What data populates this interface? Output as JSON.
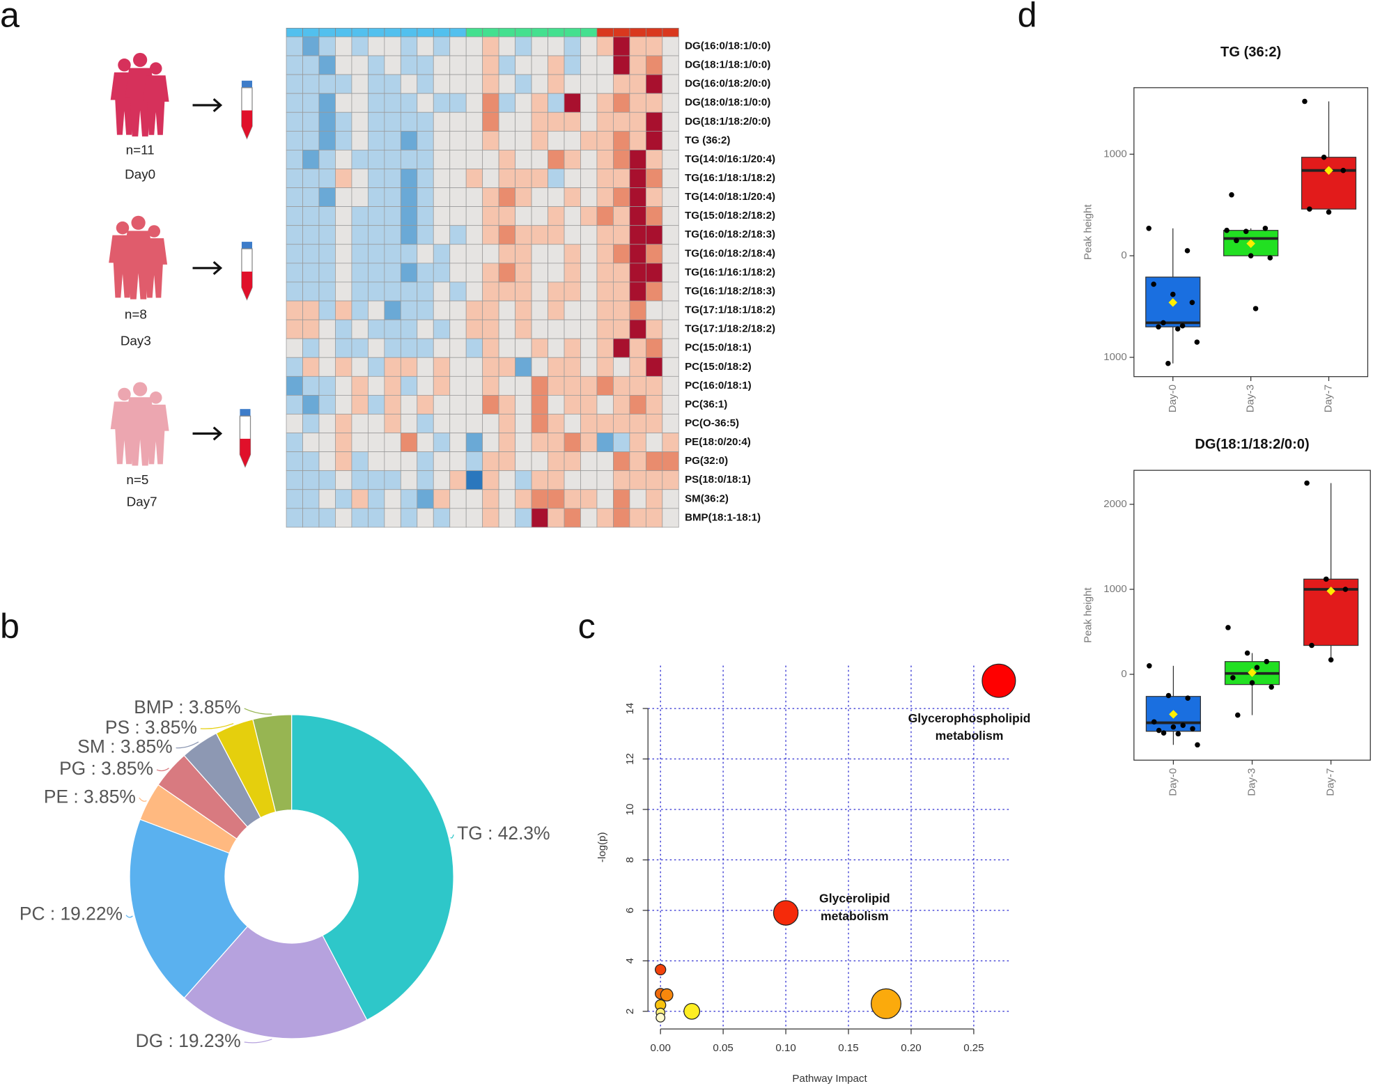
{
  "panel_labels": [
    "a",
    "b",
    "c",
    "d"
  ],
  "schematic": {
    "groups": [
      {
        "n": "n=11",
        "day": "Day0"
      },
      {
        "n": "n=8",
        "day": "Day3"
      },
      {
        "n": "n=5",
        "day": "Day7"
      }
    ]
  },
  "chart_data": [
    {
      "type": "heatmap",
      "rows": [
        "DG(16:0/18:1/0:0)",
        "DG(18:1/18:1/0:0)",
        "DG(16:0/18:2/0:0)",
        "DG(18:0/18:1/0:0)",
        "DG(18:1/18:2/0:0)",
        "TG (36:2)",
        "TG(14:0/16:1/20:4)",
        "TG(16:1/18:1/18:2)",
        "TG(14:0/18:1/20:4)",
        "TG(15:0/18:2/18:2)",
        "TG(16:0/18:2/18:3)",
        "TG(16:0/18:2/18:4)",
        "TG(16:1/16:1/18:2)",
        "TG(16:1/18:2/18:3)",
        "TG(17:1/18:1/18:2)",
        "TG(17:1/18:2/18:2)",
        "PC(15:0/18:1)",
        "PC(15:0/18:2)",
        "PC(16:0/18:1)",
        "PC(36:1)",
        "PC(O-36:5)",
        "PE(18:0/20:4)",
        "PG(32:0)",
        "PS(18:0/18:1)",
        "SM(36:2)",
        "BMP(18:1-18:1)"
      ],
      "column_groups": [
        {
          "color": "#52c0ee",
          "count": 11
        },
        {
          "color": "#44e08f",
          "count": 8
        },
        {
          "color": "#d9381e",
          "count": 5
        }
      ],
      "zlim": [
        -3,
        3
      ],
      "colors": [
        "#2b77bd",
        "#6aa9d6",
        "#b0d2ea",
        "#e6e4e2",
        "#f6c4ad",
        "#e98c6e",
        "#a8102e"
      ],
      "values": [
        [
          -1,
          -2,
          -1,
          0,
          -1,
          0,
          0,
          -1,
          0,
          -1,
          0,
          0,
          1,
          0,
          -1,
          0,
          0,
          -1,
          0,
          1,
          3,
          1,
          1,
          0
        ],
        [
          -1,
          -1,
          -2,
          0,
          0,
          -1,
          0,
          -1,
          -1,
          0,
          0,
          0,
          1,
          -1,
          0,
          0,
          1,
          -1,
          0,
          0,
          3,
          1,
          2,
          0
        ],
        [
          -1,
          -1,
          -1,
          -1,
          0,
          -1,
          -1,
          0,
          -1,
          0,
          0,
          0,
          1,
          0,
          -1,
          0,
          1,
          0,
          0,
          0,
          1,
          1,
          3,
          0
        ],
        [
          -1,
          -1,
          -2,
          0,
          0,
          -1,
          -1,
          -1,
          0,
          -1,
          -1,
          0,
          2,
          -1,
          0,
          1,
          -1,
          3,
          0,
          1,
          2,
          1,
          1,
          0
        ],
        [
          -1,
          -1,
          -2,
          -1,
          0,
          -1,
          -1,
          -1,
          -1,
          0,
          0,
          0,
          2,
          0,
          0,
          1,
          1,
          1,
          0,
          1,
          1,
          1,
          3,
          0
        ],
        [
          -1,
          -1,
          -2,
          -1,
          0,
          -1,
          -1,
          -2,
          -1,
          0,
          0,
          0,
          1,
          0,
          0,
          1,
          0,
          0,
          1,
          1,
          2,
          1,
          3,
          0
        ],
        [
          -1,
          -2,
          -1,
          0,
          -1,
          -1,
          -1,
          -1,
          -1,
          0,
          0,
          0,
          0,
          1,
          0,
          0,
          2,
          1,
          0,
          1,
          2,
          3,
          1,
          0
        ],
        [
          -1,
          -1,
          -1,
          1,
          0,
          -1,
          -1,
          -2,
          -1,
          0,
          0,
          1,
          0,
          1,
          1,
          1,
          -1,
          0,
          0,
          1,
          1,
          3,
          2,
          0
        ],
        [
          -1,
          -1,
          -2,
          0,
          0,
          -1,
          -1,
          -2,
          -1,
          0,
          0,
          0,
          1,
          2,
          1,
          0,
          0,
          1,
          0,
          1,
          2,
          3,
          1,
          0
        ],
        [
          -1,
          -1,
          -1,
          0,
          -1,
          -1,
          -1,
          -2,
          -1,
          0,
          0,
          0,
          1,
          1,
          0,
          0,
          1,
          0,
          1,
          2,
          1,
          3,
          2,
          0
        ],
        [
          -1,
          -1,
          -1,
          0,
          -1,
          -1,
          -1,
          -2,
          -1,
          0,
          -1,
          0,
          1,
          2,
          1,
          1,
          1,
          0,
          0,
          1,
          1,
          3,
          3,
          0
        ],
        [
          -1,
          -1,
          -1,
          0,
          -1,
          -1,
          -1,
          -1,
          0,
          -1,
          0,
          0,
          0,
          1,
          1,
          0,
          0,
          1,
          0,
          1,
          2,
          3,
          2,
          0
        ],
        [
          -1,
          -1,
          -1,
          0,
          -1,
          -1,
          -1,
          -2,
          -1,
          -1,
          0,
          0,
          1,
          2,
          1,
          0,
          0,
          1,
          0,
          1,
          1,
          3,
          3,
          0
        ],
        [
          -1,
          -1,
          -1,
          0,
          -1,
          -1,
          -1,
          -1,
          -1,
          0,
          -1,
          0,
          1,
          1,
          1,
          0,
          1,
          1,
          0,
          1,
          1,
          3,
          2,
          0
        ],
        [
          1,
          1,
          -1,
          1,
          -1,
          0,
          -2,
          -1,
          -1,
          0,
          0,
          1,
          1,
          0,
          1,
          0,
          1,
          0,
          0,
          1,
          1,
          2,
          0,
          0
        ],
        [
          1,
          1,
          0,
          -1,
          0,
          -1,
          -1,
          -1,
          0,
          -1,
          0,
          1,
          1,
          0,
          1,
          0,
          0,
          0,
          0,
          1,
          1,
          3,
          1,
          0
        ],
        [
          0,
          -1,
          0,
          -1,
          -1,
          0,
          -1,
          -1,
          -1,
          0,
          0,
          -1,
          1,
          0,
          0,
          1,
          0,
          1,
          0,
          1,
          3,
          1,
          2,
          0
        ],
        [
          -1,
          1,
          0,
          1,
          0,
          -1,
          1,
          1,
          0,
          1,
          0,
          0,
          1,
          1,
          -2,
          0,
          1,
          1,
          0,
          1,
          0,
          1,
          3,
          0
        ],
        [
          -2,
          -1,
          -1,
          0,
          1,
          0,
          1,
          -1,
          0,
          1,
          0,
          0,
          1,
          0,
          0,
          2,
          1,
          1,
          1,
          2,
          1,
          1,
          1,
          0
        ],
        [
          -1,
          -2,
          -1,
          0,
          1,
          -1,
          1,
          0,
          1,
          0,
          0,
          0,
          2,
          1,
          0,
          2,
          0,
          1,
          1,
          0,
          1,
          2,
          1,
          0
        ],
        [
          0,
          -1,
          0,
          1,
          0,
          0,
          1,
          0,
          -1,
          0,
          0,
          0,
          0,
          1,
          0,
          2,
          1,
          0,
          1,
          1,
          1,
          1,
          1,
          0
        ],
        [
          -1,
          0,
          0,
          1,
          0,
          0,
          0,
          2,
          0,
          -1,
          0,
          -2,
          0,
          1,
          0,
          1,
          1,
          2,
          1,
          -2,
          -1,
          1,
          0,
          1
        ],
        [
          -1,
          -1,
          0,
          1,
          -1,
          0,
          0,
          0,
          -1,
          0,
          0,
          -1,
          1,
          1,
          0,
          0,
          1,
          1,
          0,
          0,
          2,
          1,
          2,
          2
        ],
        [
          -1,
          -1,
          -1,
          0,
          -1,
          -1,
          -1,
          0,
          -1,
          0,
          1,
          -3,
          1,
          0,
          -1,
          1,
          1,
          0,
          0,
          0,
          1,
          1,
          1,
          1
        ],
        [
          -1,
          -1,
          0,
          -1,
          1,
          -1,
          0,
          -1,
          -2,
          1,
          0,
          0,
          1,
          0,
          1,
          2,
          2,
          1,
          1,
          0,
          2,
          0,
          1,
          0
        ],
        [
          -1,
          -1,
          -1,
          0,
          -1,
          -1,
          0,
          -1,
          0,
          -1,
          0,
          0,
          1,
          0,
          -1,
          3,
          1,
          2,
          0,
          1,
          2,
          1,
          1,
          0
        ]
      ]
    },
    {
      "type": "pie",
      "donut": true,
      "values": [
        42.3,
        19.23,
        19.22,
        3.85,
        3.85,
        3.85,
        3.85,
        3.85
      ],
      "value_labels": [
        "TG : 42.3%",
        "DG : 19.23%",
        "PC : 19.22%",
        "PE : 3.85%",
        "PG : 3.85%",
        "SM : 3.85%",
        "PS : 3.85%",
        "BMP : 3.85%"
      ],
      "colors": [
        "#2ec7c9",
        "#b6a2de",
        "#5ab1ef",
        "#ffb980",
        "#d87a80",
        "#8d98b3",
        "#e5cf0d",
        "#97b552"
      ]
    },
    {
      "type": "scatter",
      "x_label": "Pathway Impact",
      "y_label": "-log(p)",
      "x": [
        0.27,
        0.1,
        0.18,
        0.025,
        0.0,
        0.0,
        0.005,
        0.0,
        0.0,
        0.0
      ],
      "y": [
        15.1,
        5.9,
        2.3,
        2.0,
        3.65,
        2.7,
        2.65,
        2.25,
        1.95,
        1.75
      ],
      "sizes": [
        19,
        14,
        17,
        9,
        6,
        6,
        7,
        6,
        5,
        5
      ],
      "colors": [
        "#ff0000",
        "#f52a0a",
        "#fbaa0c",
        "#ffee22",
        "#f2430c",
        "#f06a0a",
        "#f7870c",
        "#f9c30f",
        "#fff27a",
        "#fffbd0"
      ],
      "xlim": [
        -0.01,
        0.28
      ],
      "ylim": [
        1.3,
        15.7
      ],
      "xticks": [
        {
          "value": 0,
          "label": "0.00"
        },
        0.05,
        {
          "value": 0.1,
          "label": "0.10"
        },
        0.15,
        {
          "value": 0.2,
          "label": "0.20"
        },
        0.25
      ],
      "yticks": [
        2,
        4,
        6,
        8,
        10,
        12,
        14
      ],
      "grid": true,
      "annotations": [
        {
          "lines": [
            "Glycerophospholipid",
            "metabolism"
          ]
        },
        {
          "lines": [
            "Glycerolipid",
            "metabolism"
          ]
        }
      ]
    },
    {
      "type": "box",
      "title": "TG (36:2)",
      "y_label": "Peak height",
      "ylim": [
        -1190,
        1655
      ],
      "yticks": [
        {
          "value": -1000,
          "label": "1000"
        },
        0,
        1000
      ],
      "series": [
        {
          "name": "Day-0",
          "color": "#1a6fe0",
          "q1": -700,
          "median": -660,
          "q3": -210,
          "whisker_low": -1060,
          "whisker_high": 270,
          "mean": -460,
          "points": [
            270,
            -1060,
            50,
            -280,
            -380,
            -460,
            -700,
            -720,
            -850,
            -660,
            -690
          ]
        },
        {
          "name": "Day-3",
          "color": "#22e022",
          "q1": 0,
          "median": 170,
          "q3": 250,
          "whisker_low": 0,
          "whisker_high": 270,
          "mean": 120,
          "points": [
            250,
            240,
            270,
            600,
            0,
            -20,
            150,
            -520
          ]
        },
        {
          "name": "Day-7",
          "color": "#e21b1b",
          "q1": 460,
          "median": 840,
          "q3": 970,
          "whisker_low": 420,
          "whisker_high": 1520,
          "mean": 840,
          "points": [
            1520,
            970,
            840,
            460,
            430
          ]
        }
      ]
    },
    {
      "type": "box",
      "title": "DG(18:1/18:2/0:0)",
      "y_label": "Peak height",
      "ylim": [
        -1010,
        2400
      ],
      "yticks": [
        0,
        1000,
        2000
      ],
      "series": [
        {
          "name": "Day-0",
          "color": "#1a6fe0",
          "q1": -670,
          "median": -570,
          "q3": -260,
          "whisker_low": -830,
          "whisker_high": 100,
          "mean": -470,
          "points": [
            100,
            -250,
            -280,
            -560,
            -620,
            -640,
            -660,
            -700,
            -830,
            -690,
            -600
          ]
        },
        {
          "name": "Day-3",
          "color": "#22e022",
          "q1": -120,
          "median": 10,
          "q3": 150,
          "whisker_low": -480,
          "whisker_high": 250,
          "mean": 20,
          "points": [
            550,
            250,
            150,
            -40,
            -100,
            -150,
            -480,
            80
          ]
        },
        {
          "name": "Day-7",
          "color": "#e21b1b",
          "q1": 340,
          "median": 1000,
          "q3": 1120,
          "whisker_low": 170,
          "whisker_high": 2250,
          "mean": 980,
          "points": [
            2250,
            1120,
            1000,
            340,
            170
          ]
        }
      ]
    }
  ]
}
